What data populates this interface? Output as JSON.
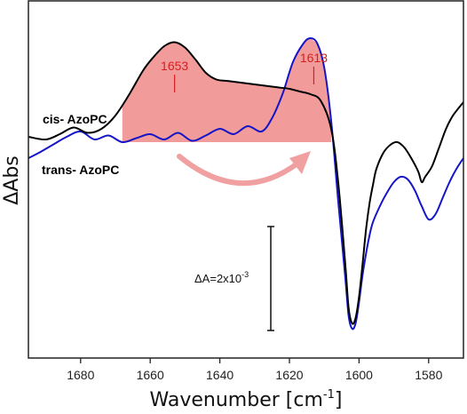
{
  "chart_data": {
    "type": "line",
    "xlabel_main": "Wavenumber [cm",
    "xlabel_sup": "-1",
    "xlabel_end": "]",
    "ylabel": "ΔAbs",
    "xlim": [
      1695,
      1570
    ],
    "x_reversed": true,
    "xticks": [
      1680,
      1660,
      1640,
      1620,
      1600,
      1580
    ],
    "grid": false,
    "colors": {
      "cis": "#000000",
      "trans": "#1515c8",
      "fill": "#f08a8a",
      "arrow": "#f0a0a0",
      "peak": "#d42020"
    },
    "series": [
      {
        "name": "cis- AzoPC",
        "x": [
          1695,
          1690,
          1686,
          1682,
          1678,
          1674,
          1670,
          1666,
          1662,
          1659,
          1656,
          1653,
          1650,
          1647,
          1644,
          1641,
          1638,
          1635,
          1632,
          1629,
          1626,
          1623,
          1620,
          1617,
          1614,
          1611,
          1608,
          1606,
          1604,
          1603,
          1602,
          1601,
          1600,
          1599,
          1598,
          1597,
          1596,
          1595,
          1593,
          1591,
          1589,
          1587,
          1585,
          1583,
          1582,
          1581,
          1579,
          1577,
          1575,
          1573,
          1570
        ],
        "y": [
          0.2,
          0.1,
          0.3,
          0.55,
          0.35,
          0.5,
          1.0,
          1.8,
          2.7,
          3.2,
          3.6,
          3.75,
          3.55,
          3.1,
          2.6,
          2.35,
          2.3,
          2.25,
          2.2,
          2.15,
          2.1,
          2.05,
          2.0,
          1.9,
          1.8,
          1.55,
          0.5,
          -1.5,
          -4.5,
          -6.2,
          -6.8,
          -6.6,
          -5.8,
          -4.6,
          -3.3,
          -2.3,
          -1.6,
          -1.0,
          -0.4,
          -0.1,
          0.0,
          -0.2,
          -0.6,
          -1.1,
          -1.5,
          -1.3,
          -0.9,
          -0.2,
          0.5,
          1.0,
          1.5
        ]
      },
      {
        "name": "trans- AzoPC",
        "x": [
          1695,
          1692,
          1688,
          1684,
          1680,
          1676,
          1672,
          1668,
          1664,
          1660,
          1656,
          1652,
          1648,
          1644,
          1640,
          1636,
          1632,
          1628,
          1625,
          1622,
          1619,
          1616,
          1614,
          1612,
          1610,
          1608,
          1606,
          1604,
          1603,
          1602,
          1601,
          1600,
          1599,
          1598,
          1597,
          1596,
          1594,
          1592,
          1590,
          1588,
          1586,
          1584,
          1582,
          1580,
          1578,
          1576,
          1574,
          1572,
          1570
        ],
        "y": [
          -0.6,
          -0.4,
          -0.1,
          0.2,
          0.4,
          0.1,
          0.25,
          0.0,
          0.15,
          0.3,
          0.1,
          0.35,
          0.05,
          0.25,
          0.5,
          0.3,
          0.6,
          0.4,
          0.9,
          1.8,
          3.0,
          3.7,
          3.9,
          3.7,
          2.8,
          0.8,
          -2.2,
          -5.0,
          -6.5,
          -7.0,
          -6.8,
          -6.0,
          -5.0,
          -4.2,
          -3.5,
          -3.0,
          -2.4,
          -1.9,
          -1.5,
          -1.3,
          -1.4,
          -1.8,
          -2.4,
          -2.9,
          -2.7,
          -2.1,
          -1.5,
          -1.0,
          -0.6
        ]
      }
    ],
    "peaks": [
      {
        "label": "1653",
        "x": 1653
      },
      {
        "label": "1613",
        "x": 1613
      }
    ],
    "scale_bar": {
      "label": "ΔA=2x10",
      "exp": "-3"
    }
  }
}
